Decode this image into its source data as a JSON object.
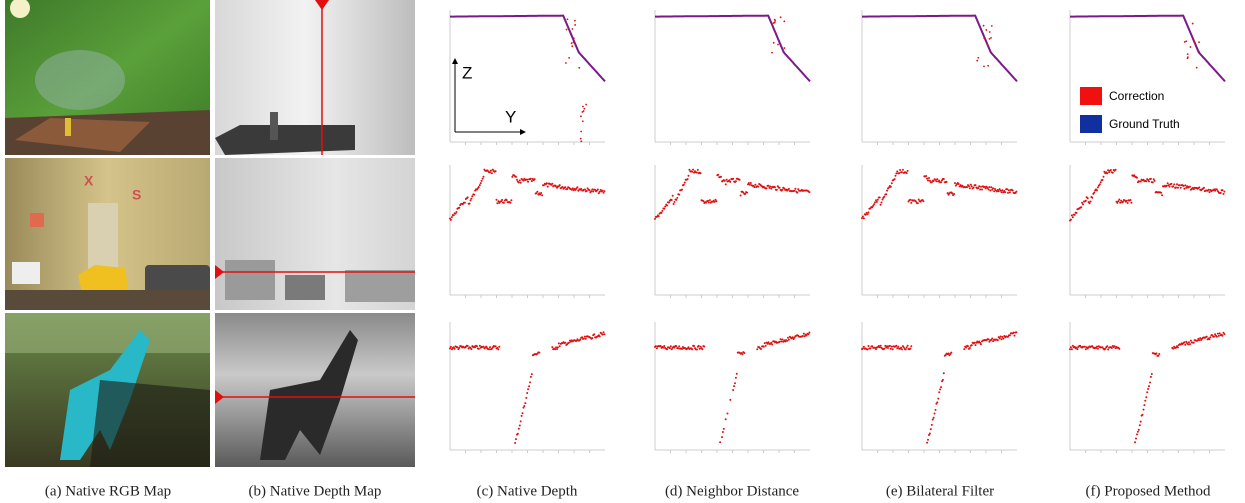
{
  "figure": {
    "captions": [
      "(a) Native RGB Map",
      "(b) Native Depth Map",
      "(c) Native Depth",
      "(d) Neighbor Distance",
      "(e) Bilateral Filter",
      "(f) Proposed Method"
    ],
    "axis_labels": {
      "z": "Z",
      "y": "Y"
    },
    "legend": [
      "Correction",
      "Ground Truth"
    ],
    "photo_text": [
      "X",
      "S"
    ]
  }
}
